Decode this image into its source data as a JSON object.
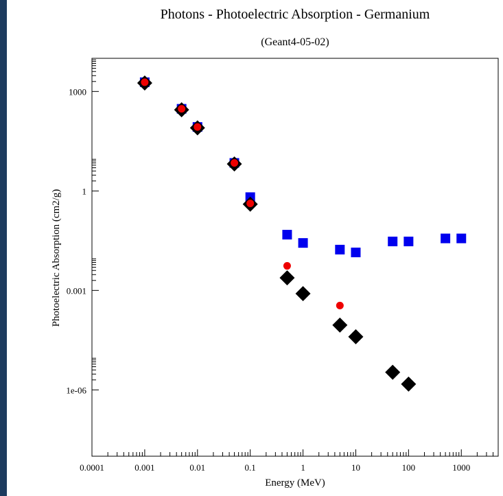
{
  "chart_data": {
    "type": "scatter",
    "title": "Photons - Photoelectric Absorption - Germanium",
    "subtitle": "(Geant4-05-02)",
    "xlabel": "Energy (MeV)",
    "ylabel": "Photoelectric Absorption (cm2/g)",
    "x_scale": "log",
    "y_scale": "log",
    "xlim": [
      0.0001,
      5000
    ],
    "ylim": [
      1e-08,
      10000.0
    ],
    "x_ticks": [
      {
        "value": 0.0001,
        "label": "0.0001"
      },
      {
        "value": 0.001,
        "label": "0.001"
      },
      {
        "value": 0.01,
        "label": "0.01"
      },
      {
        "value": 0.1,
        "label": "0.1"
      },
      {
        "value": 1,
        "label": "1"
      },
      {
        "value": 10,
        "label": "10"
      },
      {
        "value": 100,
        "label": "100"
      },
      {
        "value": 1000,
        "label": "1000"
      }
    ],
    "y_ticks": [
      {
        "value": 1e-06,
        "label": "1e-06"
      },
      {
        "value": 0.001,
        "label": "0.001"
      },
      {
        "value": 1,
        "label": "1"
      },
      {
        "value": 1000,
        "label": "1000"
      }
    ],
    "grid": false,
    "series": [
      {
        "marker": "square",
        "color": "#0000ee",
        "points": [
          [
            0.001,
            1900
          ],
          [
            0.005,
            300
          ],
          [
            0.01,
            85
          ],
          [
            0.05,
            7
          ],
          [
            0.1,
            0.65
          ],
          [
            0.5,
            0.048
          ],
          [
            1,
            0.027
          ],
          [
            5,
            0.017
          ],
          [
            10,
            0.014
          ],
          [
            50,
            0.03
          ],
          [
            100,
            0.03
          ],
          [
            500,
            0.037
          ],
          [
            1000,
            0.037
          ]
        ]
      },
      {
        "marker": "diamond",
        "color": "#000000",
        "points": [
          [
            0.001,
            1800
          ],
          [
            0.005,
            280
          ],
          [
            0.01,
            80
          ],
          [
            0.05,
            6.5
          ],
          [
            0.1,
            0.4
          ],
          [
            0.5,
            0.0024
          ],
          [
            1,
            0.0008
          ],
          [
            5,
            9e-05
          ],
          [
            10,
            4e-05
          ],
          [
            50,
            3.4e-06
          ],
          [
            100,
            1.5e-06
          ]
        ]
      },
      {
        "marker": "circle",
        "color": "#ee0000",
        "points": [
          [
            0.001,
            1900
          ],
          [
            0.005,
            300
          ],
          [
            0.01,
            85
          ],
          [
            0.05,
            7
          ],
          [
            0.1,
            0.42
          ],
          [
            0.5,
            0.0055
          ],
          [
            5,
            0.00035
          ]
        ]
      }
    ]
  }
}
